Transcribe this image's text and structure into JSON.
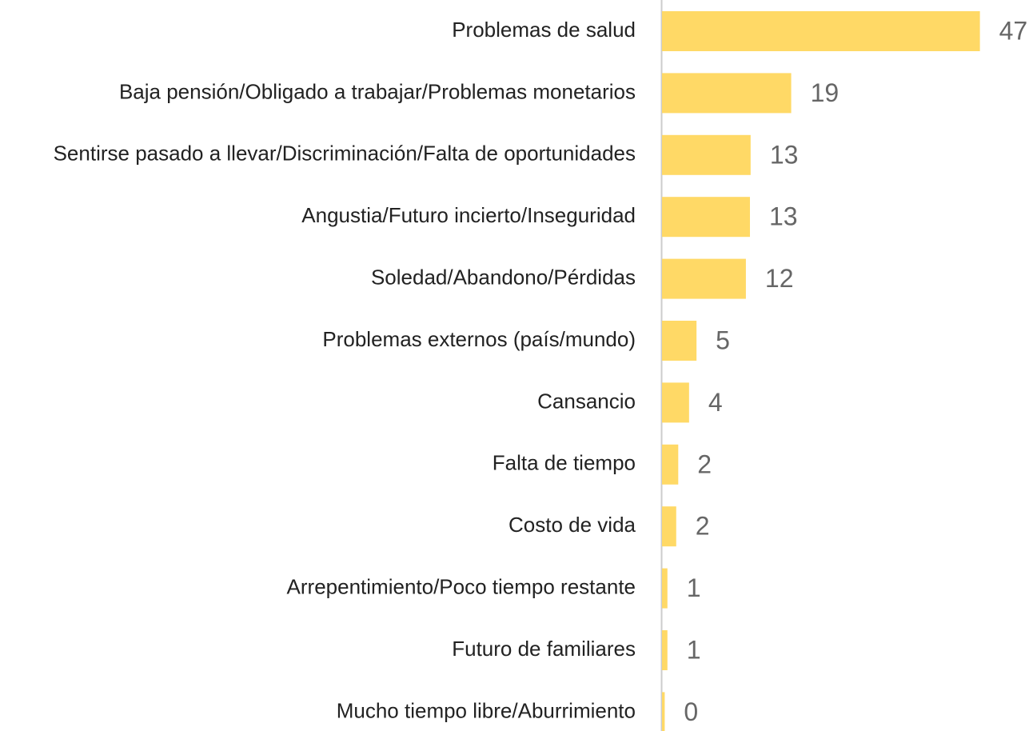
{
  "chart_data": {
    "type": "barh",
    "categories": [
      "Problemas de salud",
      "Baja pensión/Obligado a trabajar/Problemas monetarios",
      "Sentirse pasado a llevar/Discriminación/Falta de oportunidades",
      "Angustia/Futuro incierto/Inseguridad",
      "Soledad/Abandono/Pérdidas",
      "Problemas externos (país/mundo)",
      "Cansancio",
      "Falta de tiempo",
      "Costo de vida",
      "Arrepentimiento/Poco tiempo restante",
      "Futuro de familiares",
      "Mucho tiempo libre/Aburrimiento"
    ],
    "values": [
      47,
      19.1,
      13.1,
      13.0,
      12.4,
      5.1,
      4.0,
      2.4,
      2.1,
      0.8,
      0.8,
      0.4
    ],
    "value_labels": [
      "47",
      "19",
      "13",
      "13",
      "12",
      "5",
      "4",
      "2",
      "2",
      "1",
      "1",
      "0"
    ],
    "color": "#ffd966",
    "xlim": [
      0,
      50
    ]
  }
}
